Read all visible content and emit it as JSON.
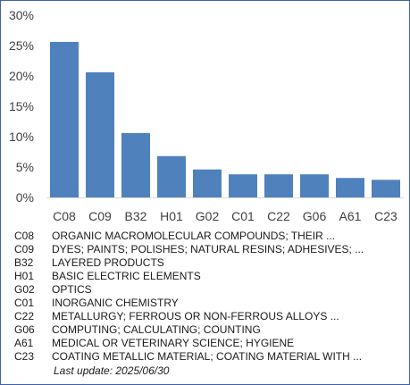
{
  "chart_data": {
    "type": "bar",
    "categories": [
      "C08",
      "C09",
      "B32",
      "H01",
      "G02",
      "C01",
      "C22",
      "G06",
      "A61",
      "C23"
    ],
    "values": [
      25.6,
      20.6,
      10.6,
      6.8,
      4.6,
      3.8,
      3.8,
      3.8,
      3.2,
      2.9
    ],
    "ylim": [
      0,
      30
    ],
    "yticks": [
      0,
      5,
      10,
      15,
      20,
      25,
      30
    ],
    "ytick_labels": [
      "0%",
      "5%",
      "10%",
      "15%",
      "20%",
      "25%",
      "30%"
    ],
    "grid": false,
    "bar_color": "#4f81bd"
  },
  "legend": [
    {
      "code": "C08",
      "desc": "ORGANIC MACROMOLECULAR COMPOUNDS; THEIR ..."
    },
    {
      "code": "C09",
      "desc": "DYES; PAINTS; POLISHES; NATURAL RESINS; ADHESIVES; ..."
    },
    {
      "code": "B32",
      "desc": "LAYERED PRODUCTS"
    },
    {
      "code": "H01",
      "desc": "BASIC ELECTRIC ELEMENTS"
    },
    {
      "code": "G02",
      "desc": "OPTICS"
    },
    {
      "code": "C01",
      "desc": "INORGANIC CHEMISTRY"
    },
    {
      "code": "C22",
      "desc": "METALLURGY; FERROUS OR NON-FERROUS ALLOYS ..."
    },
    {
      "code": "G06",
      "desc": "COMPUTING; CALCULATING; COUNTING"
    },
    {
      "code": "A61",
      "desc": "MEDICAL OR VETERINARY SCIENCE; HYGIENE"
    },
    {
      "code": "C23",
      "desc": "COATING METALLIC MATERIAL; COATING MATERIAL WITH ..."
    }
  ],
  "footer": {
    "last_update": "Last update:  2025/06/30"
  }
}
